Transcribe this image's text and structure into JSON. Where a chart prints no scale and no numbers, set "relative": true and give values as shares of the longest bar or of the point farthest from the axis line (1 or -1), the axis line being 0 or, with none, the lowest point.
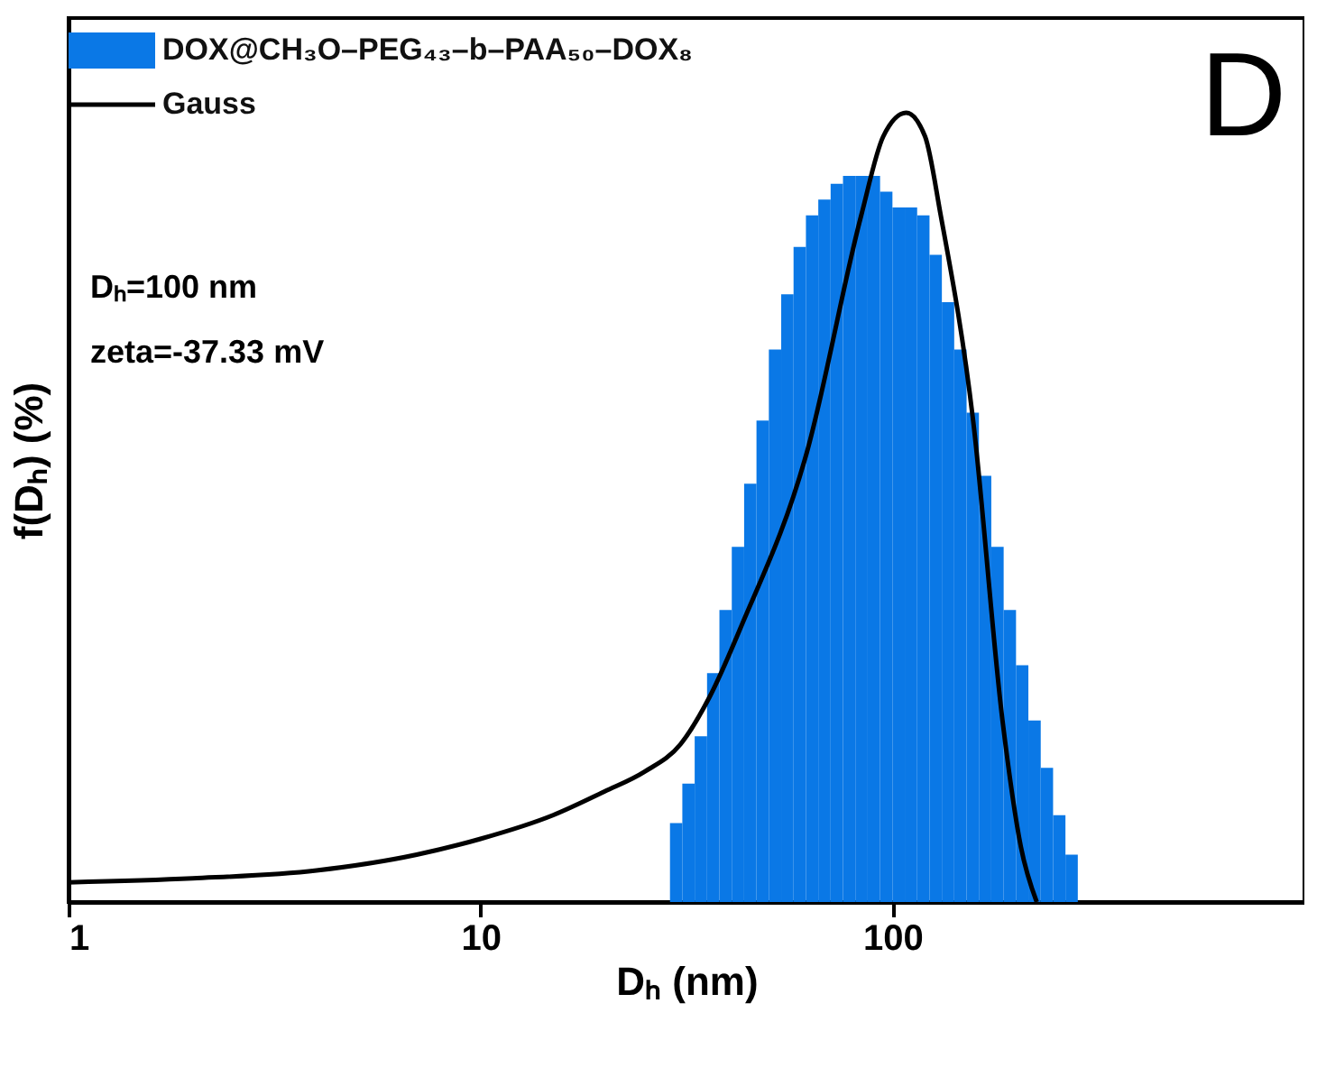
{
  "chart_data": {
    "type": "histogram",
    "xlabel": "Dₕ (nm)",
    "ylabel": "f(Dₕ) (%)",
    "relative": true,
    "log": "x",
    "xlim": [
      1,
      1000
    ],
    "xticks": [
      1,
      10,
      100
    ],
    "legend": "top left",
    "grid": false,
    "annotations": [
      "D",
      "Dₕ=100 nm",
      "zeta=-37.33 mV"
    ],
    "bins": [
      28.84,
      30.9,
      33.11,
      35.48,
      38.02,
      40.74,
      43.65,
      46.77,
      50.12,
      53.7,
      57.54,
      61.66,
      66.07,
      70.79,
      75.86,
      81.28,
      87.1,
      93.33,
      100.0,
      107.15,
      114.82,
      123.03,
      131.83,
      141.25,
      151.36,
      162.18,
      173.78,
      186.21,
      199.53,
      213.8,
      229.09,
      245.47,
      263.03,
      281.84
    ],
    "series": [
      {
        "name": "DOX@CH₃O–PEG₄₃–b–PAA₅₀–DOX₈",
        "color": "#0a78e6",
        "values": [
          0.1,
          0.15,
          0.21,
          0.29,
          0.37,
          0.45,
          0.53,
          0.61,
          0.7,
          0.77,
          0.83,
          0.87,
          0.89,
          0.91,
          0.92,
          0.92,
          0.92,
          0.9,
          0.88,
          0.88,
          0.87,
          0.82,
          0.76,
          0.7,
          0.62,
          0.54,
          0.45,
          0.37,
          0.3,
          0.23,
          0.17,
          0.11,
          0.06
        ]
      },
      {
        "name": "Gauss",
        "type": "line",
        "color": "#000000",
        "x": [
          1,
          2,
          4,
          7,
          10,
          15,
          20,
          25,
          30.6,
          36,
          43,
          62,
          84,
          95,
          108,
          120,
          131,
          157,
          185,
          205,
          224
        ],
        "values": [
          0.025,
          0.03,
          0.04,
          0.06,
          0.08,
          0.11,
          0.14,
          0.165,
          0.2,
          0.26,
          0.35,
          0.57,
          0.87,
          0.97,
          1.0,
          0.97,
          0.87,
          0.61,
          0.23,
          0.07,
          0.0
        ]
      }
    ]
  }
}
